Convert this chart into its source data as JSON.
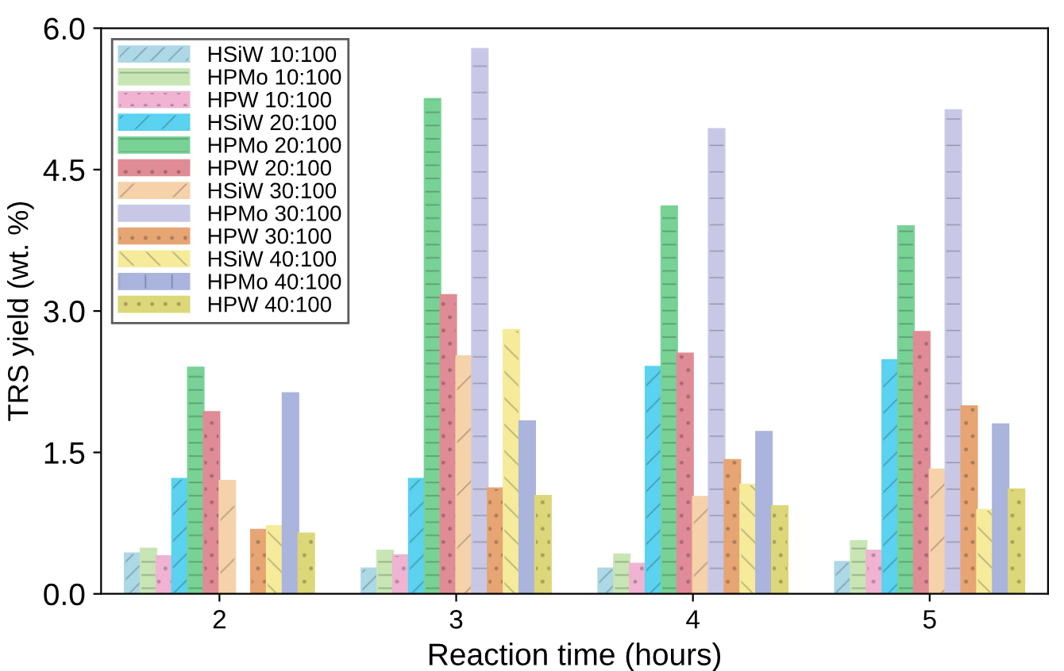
{
  "chart_data": {
    "type": "bar",
    "xlabel": "Reaction time (hours)",
    "ylabel": "TRS yield (wt. %)",
    "categories": [
      "2",
      "3",
      "4",
      "5"
    ],
    "series": [
      {
        "name": "HSiW 10:100",
        "color": "#add8e6",
        "values": [
          0.43,
          0.27,
          0.27,
          0.34
        ]
      },
      {
        "name": "HPMo 10:100",
        "color": "#c8e6b4",
        "values": [
          0.48,
          0.46,
          0.42,
          0.56
        ]
      },
      {
        "name": "HPW 10:100",
        "color": "#f0b4d2",
        "values": [
          0.4,
          0.41,
          0.32,
          0.46
        ]
      },
      {
        "name": "HSiW 20:100",
        "color": "#5ad2f0",
        "values": [
          1.22,
          1.22,
          2.41,
          2.48
        ]
      },
      {
        "name": "HPMo 20:100",
        "color": "#78d296",
        "values": [
          2.4,
          5.25,
          4.11,
          3.9
        ]
      },
      {
        "name": "HPW 20:100",
        "color": "#e08c96",
        "values": [
          1.93,
          3.17,
          2.55,
          2.78
        ]
      },
      {
        "name": "HSiW 30:100",
        "color": "#f5d2aa",
        "values": [
          1.2,
          2.52,
          1.03,
          1.32
        ]
      },
      {
        "name": "HPMo 30:100",
        "color": "#c8c8e6",
        "values": [
          null,
          5.78,
          4.93,
          5.13
        ]
      },
      {
        "name": "HPW 30:100",
        "color": "#e6a573",
        "values": [
          0.68,
          1.12,
          1.42,
          1.99
        ]
      },
      {
        "name": "HSiW 40:100",
        "color": "#f5eb9b",
        "values": [
          0.72,
          2.8,
          1.16,
          0.89
        ]
      },
      {
        "name": "HPMo 40:100",
        "color": "#aab4dc",
        "values": [
          2.13,
          1.83,
          1.72,
          1.8
        ]
      },
      {
        "name": "HPW 40:100",
        "color": "#dcd778",
        "values": [
          0.64,
          1.04,
          0.93,
          1.11
        ]
      }
    ],
    "ylim": [
      0,
      6
    ],
    "yticks": [
      {
        "value": 0,
        "label": "0.0"
      },
      {
        "value": 1.5,
        "label": "1.5"
      },
      {
        "value": 3,
        "label": "3.0"
      },
      {
        "value": 4.5,
        "label": "4.5"
      },
      {
        "value": 6,
        "label": "6.0"
      }
    ],
    "grid": false,
    "legend": "top left"
  }
}
